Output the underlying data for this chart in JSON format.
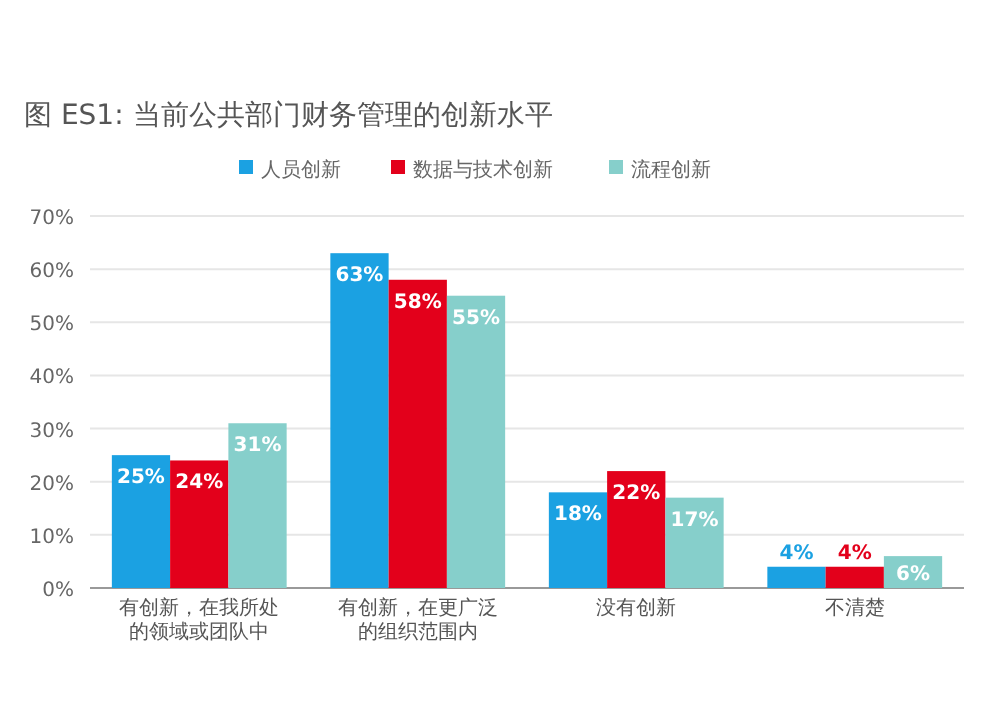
{
  "chart_data": {
    "type": "bar",
    "title": "图 ES1: 当前公共部门财务管理的创新水平",
    "categories": [
      "有创新，在我所处的领域或团队中",
      "有创新，在更广泛的组织范围内",
      "没有创新",
      "不清楚"
    ],
    "series": [
      {
        "name": "人员创新",
        "color": "#1ba1e2",
        "values": [
          25,
          63,
          18,
          4
        ],
        "value_labels": [
          "25%",
          "63%",
          "18%",
          "4%"
        ]
      },
      {
        "name": "数据与技术创新",
        "color": "#e3001b",
        "values": [
          24,
          58,
          22,
          4
        ],
        "value_labels": [
          "24%",
          "58%",
          "22%",
          "4%"
        ]
      },
      {
        "name": "流程创新",
        "color": "#86cfcb",
        "values": [
          31,
          55,
          17,
          6
        ],
        "value_labels": [
          "31%",
          "55%",
          "17%",
          "6%"
        ]
      }
    ],
    "ylim": [
      0,
      70
    ],
    "yticks": [
      {
        "value": 0,
        "label": "0%"
      },
      {
        "value": 10,
        "label": "10%"
      },
      {
        "value": 20,
        "label": "20%"
      },
      {
        "value": 30,
        "label": "30%"
      },
      {
        "value": 40,
        "label": "40%"
      },
      {
        "value": 50,
        "label": "50%"
      },
      {
        "value": 60,
        "label": "60%"
      },
      {
        "value": 70,
        "label": "70%"
      }
    ],
    "grid": "y",
    "legend": "top"
  }
}
